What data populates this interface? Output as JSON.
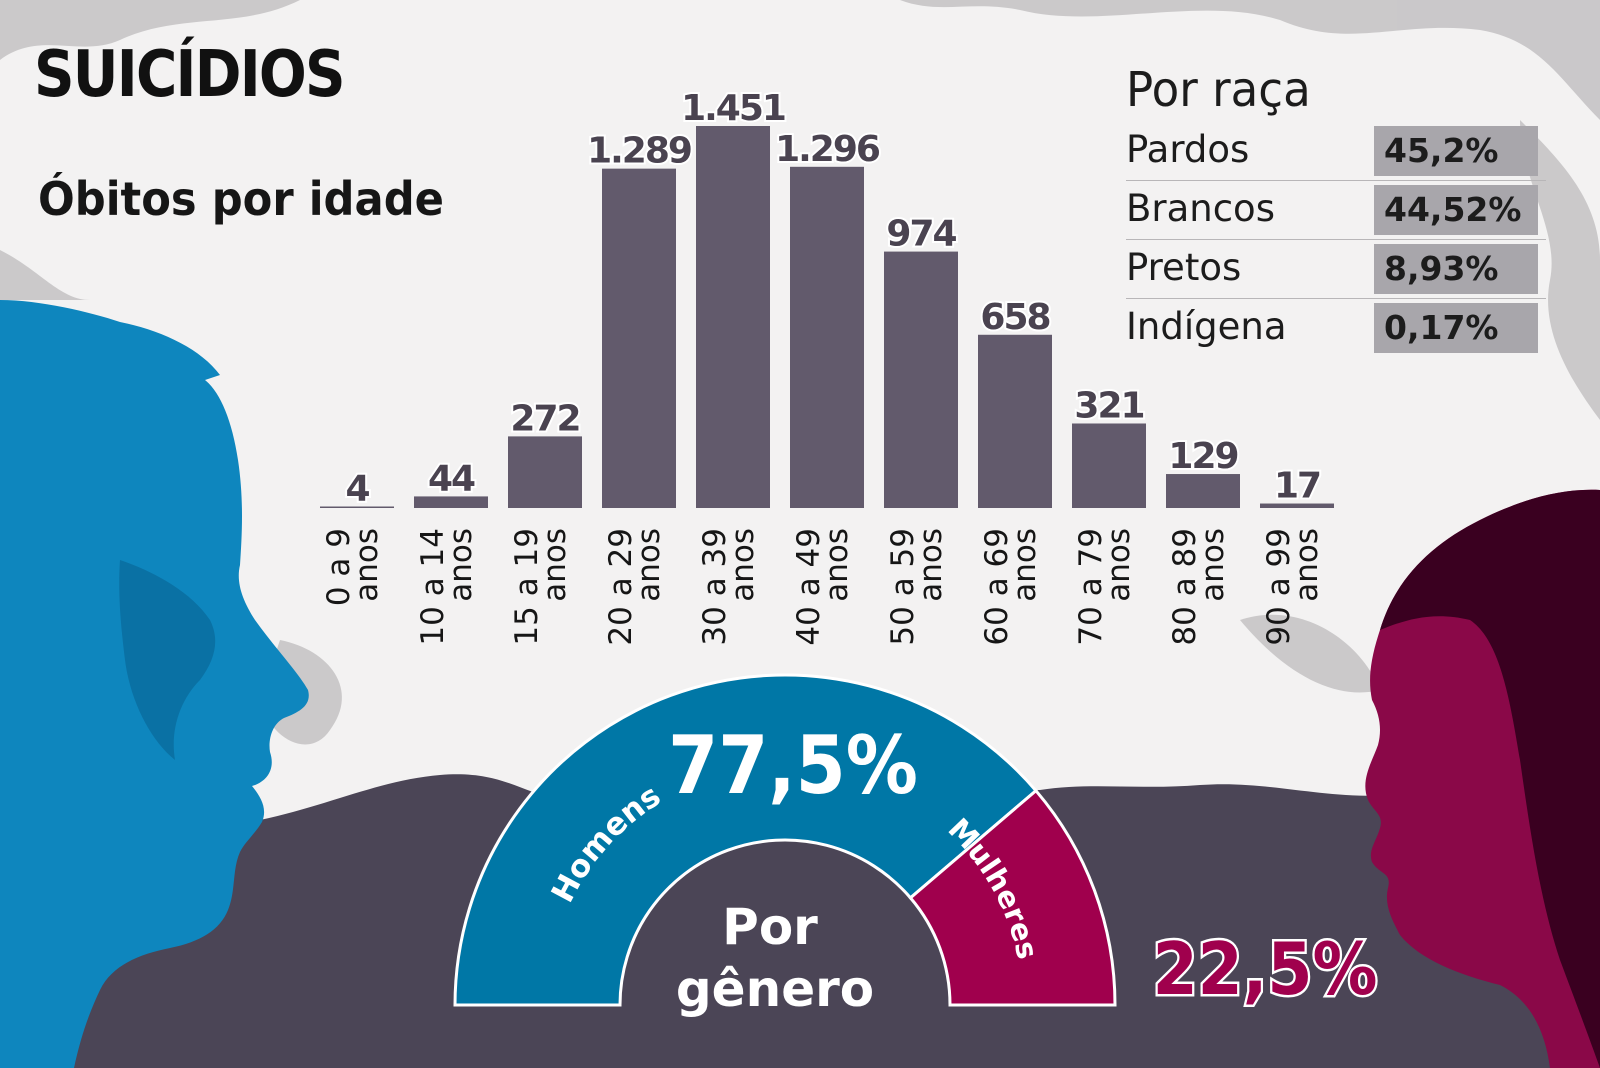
{
  "title": "SUICÍDIOS",
  "subtitle": "Óbitos por idade",
  "race": {
    "title": "Por raça",
    "rows": [
      {
        "label": "Pardos",
        "value": "45,2%"
      },
      {
        "label": "Brancos",
        "value": "44,52%"
      },
      {
        "label": "Pretos",
        "value": "8,93%"
      },
      {
        "label": "Indígena",
        "value": "0,17%"
      }
    ]
  },
  "gender": {
    "center_label_line1": "Por",
    "center_label_line2": "gênero",
    "men_label": "Homens",
    "women_label": "Mulheres",
    "men_value_text": "77,5%",
    "women_value_text": "22,5%"
  },
  "colors": {
    "bar": "#625a6c",
    "men": "#0077a6",
    "women": "#a0004d",
    "dark_ground": "#4b4556",
    "face_men": "#0e86be",
    "face_women": "#8a0848"
  },
  "icons": [
    "man-face-silhouette",
    "woman-face-silhouette"
  ],
  "chart_data": [
    {
      "type": "bar",
      "title": "Óbitos por idade",
      "categories": [
        "0 a 9 anos",
        "10 a 14 anos",
        "15 a 19 anos",
        "20 a 29 anos",
        "30 a 39 anos",
        "40 a 49 anos",
        "50 a 59 anos",
        "60 a 69 anos",
        "70 a 79 anos",
        "80 a 89 anos",
        "90 a 99 anos"
      ],
      "category_lines": [
        [
          "0 a 9",
          "anos"
        ],
        [
          "10 a 14",
          "anos"
        ],
        [
          "15 a 19",
          "anos"
        ],
        [
          "20 a 29",
          "anos"
        ],
        [
          "30 a 39",
          "anos"
        ],
        [
          "40 a 49",
          "anos"
        ],
        [
          "50 a 59",
          "anos"
        ],
        [
          "60 a 69",
          "anos"
        ],
        [
          "70 a 79",
          "anos"
        ],
        [
          "80 a 89",
          "anos"
        ],
        [
          "90 a 99",
          "anos"
        ]
      ],
      "values": [
        4,
        44,
        272,
        1289,
        1451,
        1296,
        974,
        658,
        321,
        129,
        17
      ],
      "value_labels": [
        "4",
        "44",
        "272",
        "1.289",
        "1.451",
        "1.296",
        "974",
        "658",
        "321",
        "129",
        "17"
      ],
      "grid": false
    },
    {
      "type": "pie",
      "title": "Por gênero",
      "categories": [
        "Homens",
        "Mulheres"
      ],
      "values": [
        77.5,
        22.5
      ],
      "shape": "half-donut"
    }
  ]
}
